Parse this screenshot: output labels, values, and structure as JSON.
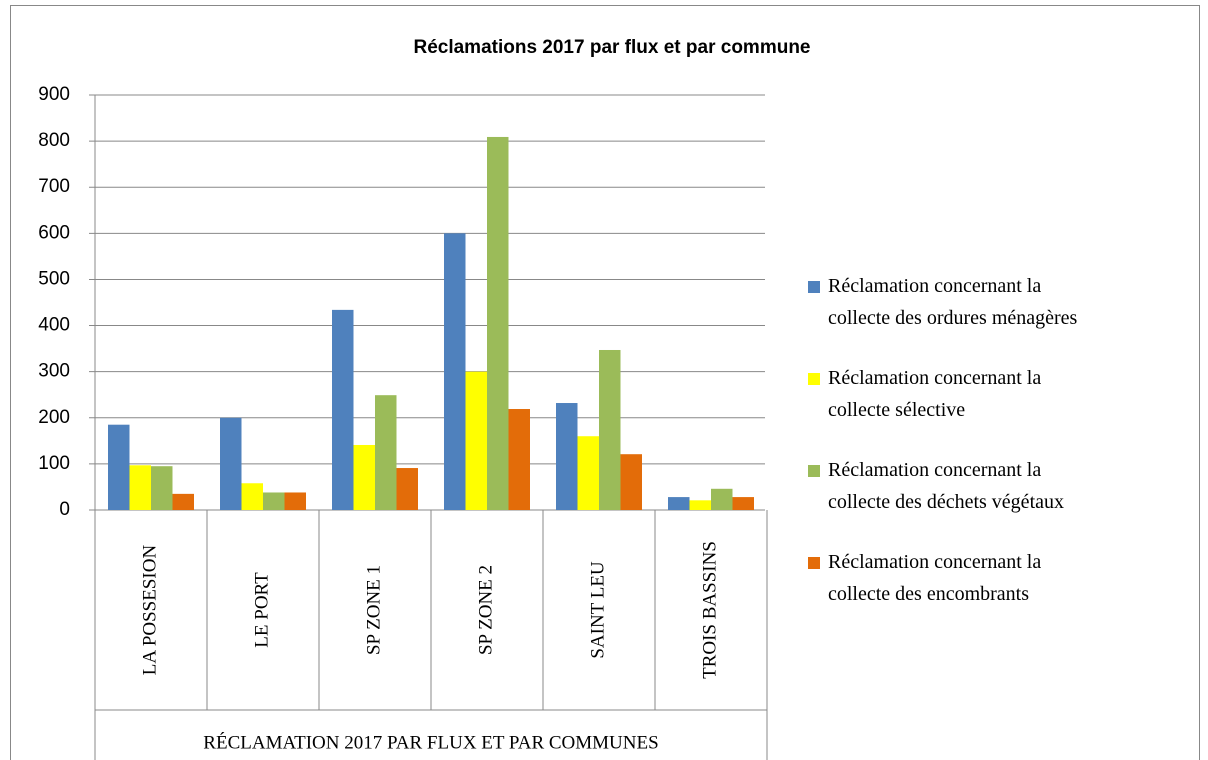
{
  "chart_data": {
    "type": "bar",
    "title": "Réclamations 2017 par flux et par commune",
    "x_label": "RÉCLAMATION 2017 PAR FLUX ET PAR COMMUNES",
    "categories": [
      "LA POSSESION",
      "LE PORT",
      "SP ZONE 1",
      "SP ZONE 2",
      "SAINT LEU",
      "TROIS BASSINS"
    ],
    "series": [
      {
        "name": "Réclamation concernant la collecte des ordures ménagères",
        "color": "#4f81bd",
        "values": [
          185,
          200,
          434,
          600,
          232,
          28
        ]
      },
      {
        "name": "Réclamation concernant la collecte sélective",
        "color": "#ffff00",
        "values": [
          97,
          58,
          141,
          300,
          160,
          21
        ]
      },
      {
        "name": "Réclamation concernant la collecte des déchets végétaux",
        "color": "#9bbb59",
        "values": [
          95,
          38,
          249,
          809,
          347,
          46
        ]
      },
      {
        "name": "Réclamation concernant la collecte des encombrants",
        "color": "#e36c09",
        "values": [
          35,
          38,
          91,
          219,
          121,
          28
        ]
      }
    ],
    "ylim": [
      0,
      900
    ],
    "yticks": [
      0,
      100,
      200,
      300,
      400,
      500,
      600,
      700,
      800,
      900
    ],
    "grid": true,
    "legend": "right"
  }
}
